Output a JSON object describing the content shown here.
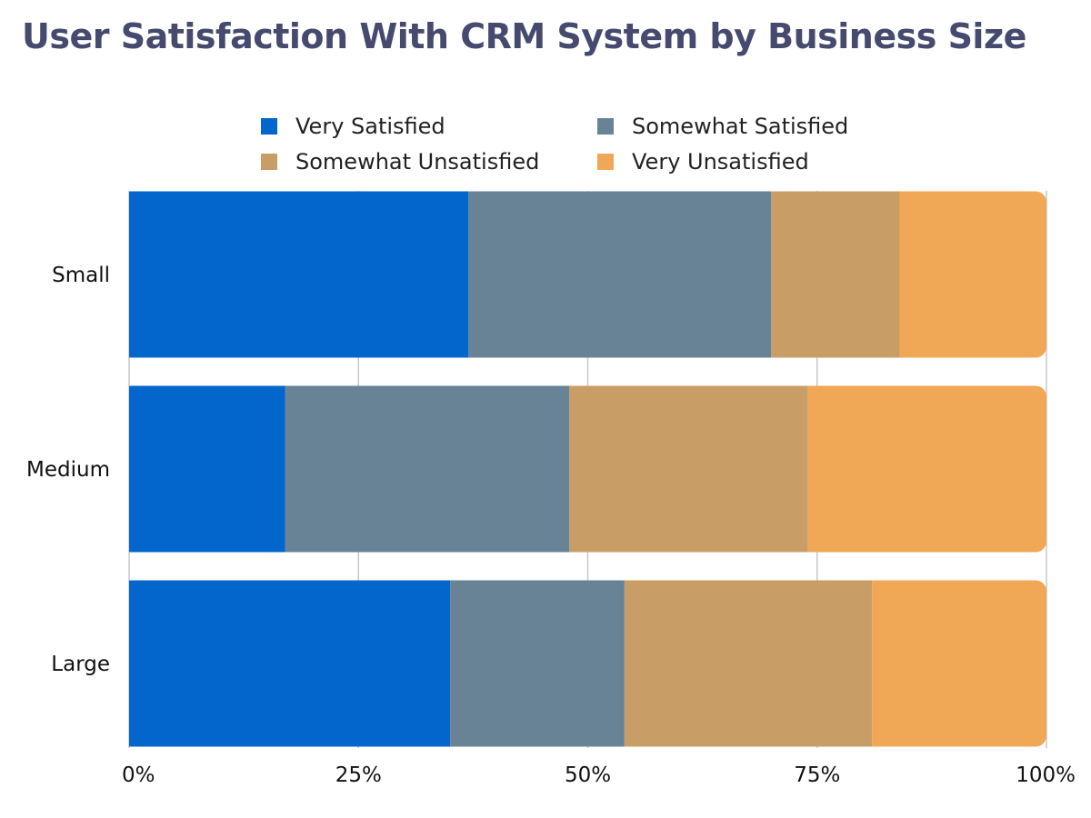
{
  "chart_data": {
    "type": "bar",
    "orientation": "horizontal",
    "stacked": true,
    "normalized_percent": true,
    "title": "User Satisfaction With CRM System by Business Size",
    "categories": [
      "Small",
      "Medium",
      "Large"
    ],
    "series": [
      {
        "name": "Very Satisfied",
        "color": "#0366cc",
        "values": [
          37,
          17,
          35
        ]
      },
      {
        "name": "Somewhat Satisfied",
        "color": "#688296",
        "values": [
          33,
          31,
          19
        ]
      },
      {
        "name": "Somewhat Unsatisfied",
        "color": "#c99e66",
        "values": [
          14,
          26,
          27
        ]
      },
      {
        "name": "Very Unsatisfied",
        "color": "#f0a756",
        "values": [
          16,
          26,
          19
        ]
      }
    ],
    "xlim": [
      0,
      100
    ],
    "xticks": [
      "0%",
      "25%",
      "50%",
      "75%",
      "100%"
    ],
    "grid": true,
    "legend_position": "top"
  }
}
